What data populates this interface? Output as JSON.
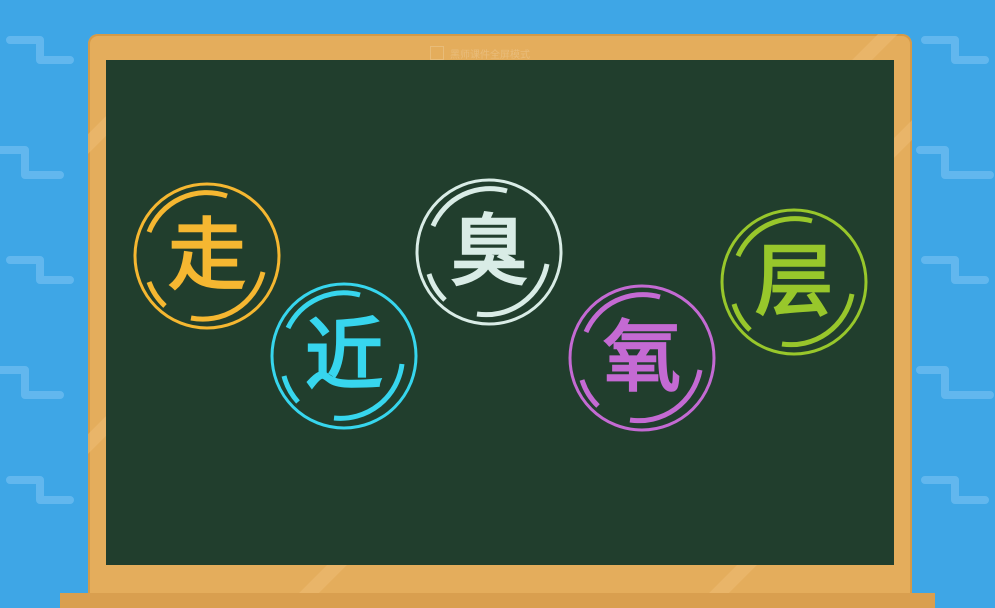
{
  "watermark": {
    "text": "黑师课件全屏模式"
  },
  "characters": [
    {
      "char": "走",
      "color": "#f5b731"
    },
    {
      "char": "近",
      "color": "#37d6ee"
    },
    {
      "char": "臭",
      "color": "#d9ece6"
    },
    {
      "char": "氧",
      "color": "#c46ad3"
    },
    {
      "char": "层",
      "color": "#98c72b"
    }
  ],
  "colors": {
    "background": "#3ea6e6",
    "frame": "#e4ad5c",
    "board": "#213e2d"
  }
}
